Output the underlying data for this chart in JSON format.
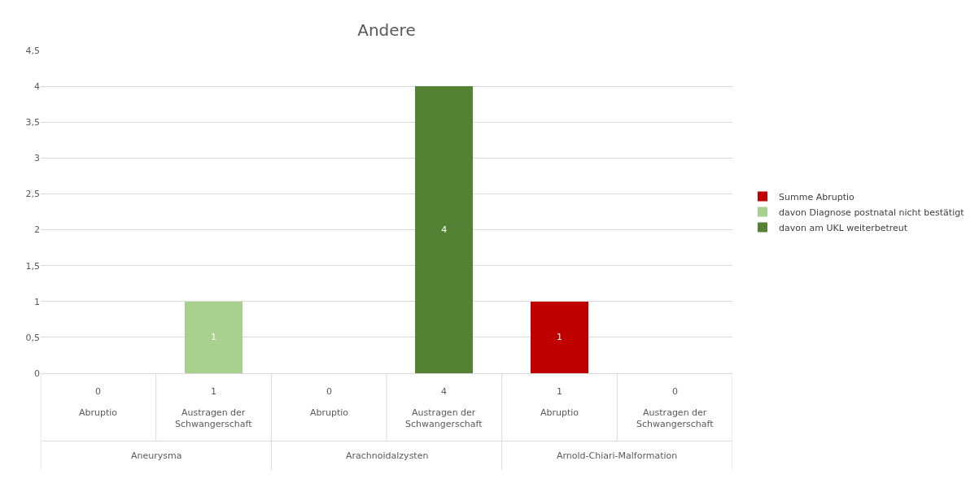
{
  "chart_data": {
    "type": "bar",
    "title": "Andere",
    "stacked": true,
    "categories": [
      "Abruptio",
      "Austragen der Schwangerschaft",
      "Abruptio",
      "Austragen der Schwangerschaft",
      "Abruptio",
      "Austragen der Schwangerschaft"
    ],
    "series": [
      {
        "name": "Summe Abruptio",
        "color": "#c00000",
        "values": [
          null,
          null,
          null,
          null,
          1,
          null
        ]
      },
      {
        "name": "davon Diagnose postnatal nicht bestätigt",
        "color": "#a9d18e",
        "values": [
          null,
          1,
          null,
          null,
          null,
          null
        ]
      },
      {
        "name": "davon am UKL weiterbetreut",
        "color": "#548235",
        "values": [
          null,
          null,
          null,
          4,
          null,
          null
        ]
      }
    ],
    "totals": [
      "0",
      "1",
      "0",
      "4",
      "1",
      "0"
    ],
    "annotations": [
      "Aneurysma",
      "Arachnoidalzysten",
      "Arnold-Chiari-Malformation"
    ],
    "ylim": [
      0,
      4.5
    ],
    "yticks": [
      0,
      {
        "value": 0.5,
        "label": "0,5"
      },
      1,
      {
        "value": 1.5,
        "label": "1,5"
      },
      2,
      {
        "value": 2.5,
        "label": "2,5"
      },
      3,
      {
        "value": 3.5,
        "label": "3,5"
      },
      4,
      {
        "value": 4.5,
        "label": "4,5"
      }
    ],
    "grid": "y",
    "data_labels": true,
    "legend": "right"
  }
}
